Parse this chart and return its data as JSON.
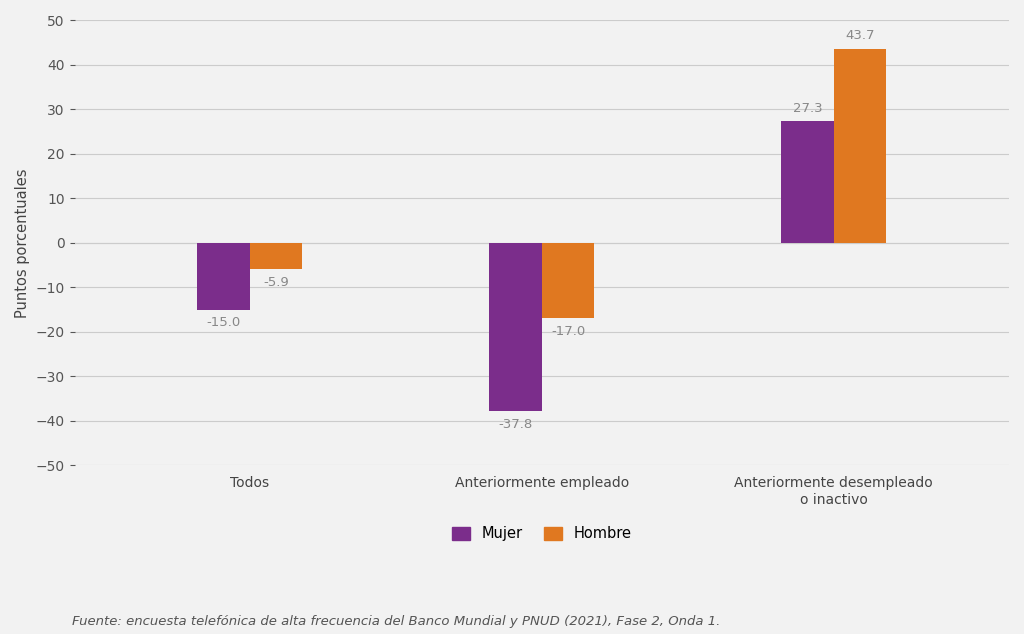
{
  "categories": [
    "Todos",
    "Anteriormente empleado",
    "Anteriormente desempleado\no inactivo"
  ],
  "mujer_values": [
    -15.0,
    -37.8,
    27.3
  ],
  "hombre_values": [
    -5.9,
    -17.0,
    43.7
  ],
  "mujer_color": "#7B2D8B",
  "hombre_color": "#E07820",
  "ylabel": "Puntos porcentuales",
  "ylim": [
    -50,
    50
  ],
  "yticks": [
    -50,
    -40,
    -30,
    -20,
    -10,
    0,
    10,
    20,
    30,
    40,
    50
  ],
  "legend_mujer": "Mujer",
  "legend_hombre": "Hombre",
  "footnote": "Fuente: encuesta telefónica de alta frecuencia del Banco Mundial y PNUD (2021), Fase 2, Onda 1.",
  "bar_width": 0.18,
  "background_color": "#F2F2F2",
  "grid_color": "#CCCCCC",
  "label_color": "#888888",
  "label_fontsize": 9.5,
  "tick_fontsize": 10,
  "ylabel_fontsize": 10.5,
  "footnote_fontsize": 9.5,
  "legend_fontsize": 10.5
}
